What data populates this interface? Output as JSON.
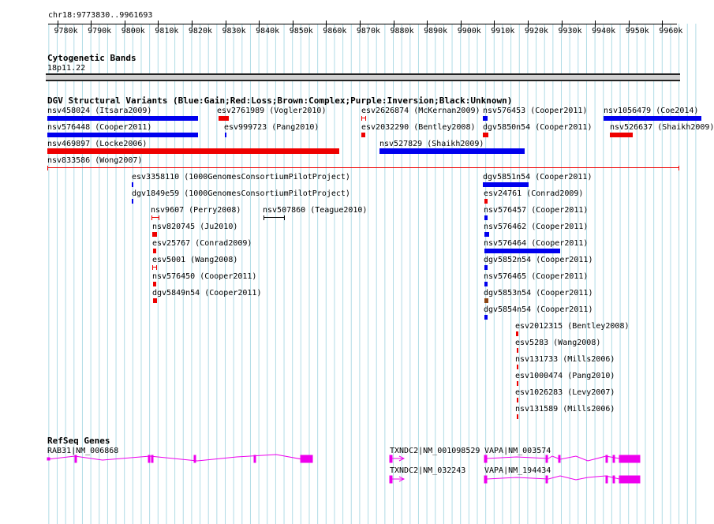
{
  "ruler": {
    "label": "chr18:9773830..9961693",
    "ticks": [
      "9780k",
      "9790k",
      "9800k",
      "9810k",
      "9820k",
      "9830k",
      "9840k",
      "9850k",
      "9860k",
      "9870k",
      "9880k",
      "9890k",
      "9900k",
      "9910k",
      "9920k",
      "9930k",
      "9940k",
      "9950k",
      "9960k"
    ]
  },
  "cyto": {
    "title": "Cytogenetic Bands",
    "band": "18p11.22"
  },
  "dgv": {
    "title": "DGV Structural Variants (Blue:Gain;Red:Loss;Brown:Complex;Purple:Inversion;Black:Unknown)",
    "variants": [
      "nsv458024 (Itsara2009)",
      "esv2761989 (Vogler2010)",
      "esv2626874 (McKernan2009)",
      "nsv576453 (Cooper2011)",
      "nsv1056479 (Coe2014)",
      "nsv576448 (Cooper2011)",
      "esv999723 (Pang2010)",
      "esv2032290 (Bentley2008)",
      "dgv5850n54 (Cooper2011)",
      "nsv526637 (Shaikh2009)",
      "nsv469897 (Locke2006)",
      "nsv527829 (Shaikh2009)",
      "nsv833586 (Wong2007)",
      "esv3358110 (1000GenomesConsortiumPilotProject)",
      "dgv1849e59 (1000GenomesConsortiumPilotProject)",
      "nsv9607 (Perry2008)",
      "nsv507860 (Teague2010)",
      "nsv820745 (Ju2010)",
      "esv25767 (Conrad2009)",
      "esv5001 (Wang2008)",
      "nsv576450 (Cooper2011)",
      "dgv5849n54 (Cooper2011)",
      "dgv5851n54 (Cooper2011)",
      "esv24761 (Conrad2009)",
      "nsv576457 (Cooper2011)",
      "nsv576462 (Cooper2011)",
      "nsv576464 (Cooper2011)",
      "dgv5852n54 (Cooper2011)",
      "nsv576465 (Cooper2011)",
      "dgv5853n54 (Cooper2011)",
      "dgv5854n54 (Cooper2011)",
      "esv2012315 (Bentley2008)",
      "esv5283 (Wang2008)",
      "nsv131733 (Mills2006)",
      "esv1000474 (Pang2010)",
      "esv1026283 (Levy2007)",
      "nsv131589 (Mills2006)"
    ]
  },
  "refseq": {
    "title": "RefSeq Genes",
    "genes": [
      "RAB31|NM_006868",
      "TXNDC2|NM_001098529",
      "VAPA|NM_003574",
      "TXNDC2|NM_032243",
      "VAPA|NM_194434"
    ]
  },
  "colors": {
    "gain": "#0000ee",
    "loss": "#ee0000",
    "complex": "#8b4513",
    "gene": "#ee00ee",
    "grid": "#b0dce6"
  }
}
